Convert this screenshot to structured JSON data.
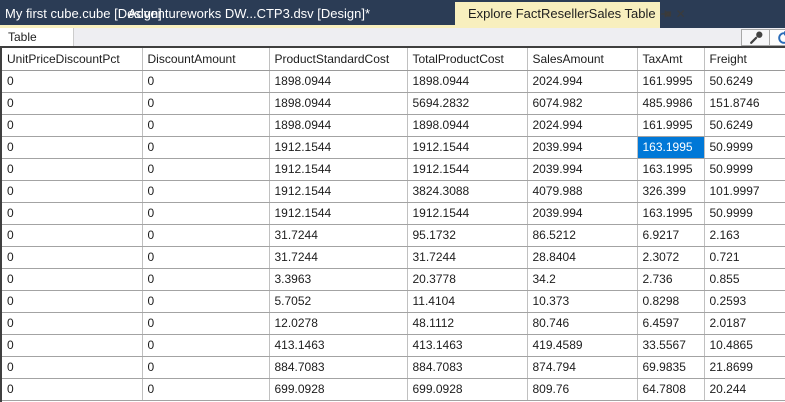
{
  "tabs": {
    "items": [
      {
        "label": "My first cube.cube [Design]",
        "state": "inactive"
      },
      {
        "label": "Adventureworks DW...CTP3.dsv [Design]*",
        "state": "inactive"
      },
      {
        "label": "Explore FactResellerSales Table",
        "state": "active"
      }
    ],
    "active_tab_icons": {
      "pin": "pin-icon",
      "close_glyph": "✕"
    }
  },
  "view_bar": {
    "table_tab_label": "Table",
    "tool_icons": [
      "wrench-icon",
      "refresh-icon"
    ]
  },
  "grid": {
    "columns": [
      "UnitPriceDiscountPct",
      "DiscountAmount",
      "ProductStandardCost",
      "TotalProductCost",
      "SalesAmount",
      "TaxAmt",
      "Freight"
    ],
    "rows": [
      [
        "0",
        "0",
        "1898.0944",
        "1898.0944",
        "2024.994",
        "161.9995",
        "50.6249"
      ],
      [
        "0",
        "0",
        "1898.0944",
        "5694.2832",
        "6074.982",
        "485.9986",
        "151.8746"
      ],
      [
        "0",
        "0",
        "1898.0944",
        "1898.0944",
        "2024.994",
        "161.9995",
        "50.6249"
      ],
      [
        "0",
        "0",
        "1912.1544",
        "1912.1544",
        "2039.994",
        "163.1995",
        "50.9999"
      ],
      [
        "0",
        "0",
        "1912.1544",
        "1912.1544",
        "2039.994",
        "163.1995",
        "50.9999"
      ],
      [
        "0",
        "0",
        "1912.1544",
        "3824.3088",
        "4079.988",
        "326.399",
        "101.9997"
      ],
      [
        "0",
        "0",
        "1912.1544",
        "1912.1544",
        "2039.994",
        "163.1995",
        "50.9999"
      ],
      [
        "0",
        "0",
        "31.7244",
        "95.1732",
        "86.5212",
        "6.9217",
        "2.163"
      ],
      [
        "0",
        "0",
        "31.7244",
        "31.7244",
        "28.8404",
        "2.3072",
        "0.721"
      ],
      [
        "0",
        "0",
        "3.3963",
        "20.3778",
        "34.2",
        "2.736",
        "0.855"
      ],
      [
        "0",
        "0",
        "5.7052",
        "11.4104",
        "10.373",
        "0.8298",
        "0.2593"
      ],
      [
        "0",
        "0",
        "12.0278",
        "48.1112",
        "80.746",
        "6.4597",
        "2.0187"
      ],
      [
        "0",
        "0",
        "413.1463",
        "413.1463",
        "419.4589",
        "33.5567",
        "10.4865"
      ],
      [
        "0",
        "0",
        "884.7083",
        "884.7083",
        "874.794",
        "69.9835",
        "21.8699"
      ],
      [
        "0",
        "0",
        "699.0928",
        "699.0928",
        "809.76",
        "64.7808",
        "20.244"
      ]
    ],
    "selected_cell": {
      "row_index": 3,
      "column": "TaxAmt",
      "col_index": 5,
      "value": "163.1995"
    }
  },
  "colors": {
    "tab_bar": "#2b3c55",
    "active_tab": "#f8efbe",
    "selection": "#0078d7",
    "strip": "#eeeef2"
  }
}
